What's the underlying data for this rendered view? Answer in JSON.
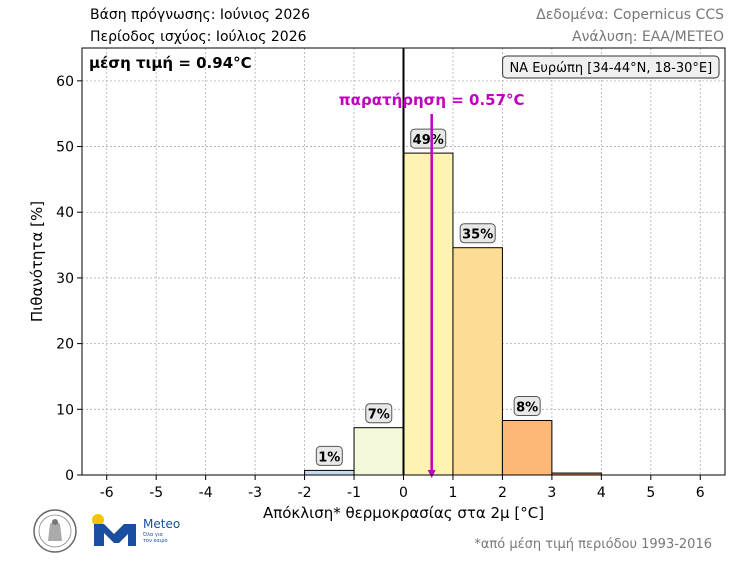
{
  "header": {
    "forecast_base": "Βάση πρόγνωσης: Ιούνιος 2026",
    "validity_period": "Περίοδος ισχύος: Ιούλιος 2026",
    "data_source": "Δεδομένα: Copernicus CCS",
    "analysis": "Ανάλυση: ΕΑΑ/METEO"
  },
  "footnote": "*από μέση τιμή περιόδου 1993-2016",
  "logos": {
    "meteo_name": "Meteo",
    "meteo_tagline": "Όλα για τον καιρό"
  },
  "colors": {
    "observation": "#c000c0",
    "bar_edge": "#000000",
    "grid": "#b0b0b0"
  },
  "chart_data": {
    "type": "bar",
    "xlabel": "Απόκλιση* θερμοκρασίας στα 2μ [°C]",
    "ylabel": "Πιθανότητα [%]",
    "xlim": [
      -6.5,
      6.5
    ],
    "ylim": [
      0,
      65
    ],
    "xticks": [
      -6,
      -5,
      -4,
      -3,
      -2,
      -1,
      0,
      1,
      2,
      3,
      4,
      5,
      6
    ],
    "yticks": [
      0,
      10,
      20,
      30,
      40,
      50,
      60
    ],
    "grid": true,
    "bins": [
      {
        "from": -6,
        "to": -5,
        "value": 0,
        "color": "#08306b",
        "label": ""
      },
      {
        "from": -5,
        "to": -4,
        "value": 0,
        "color": "#2171b5",
        "label": ""
      },
      {
        "from": -4,
        "to": -3,
        "value": 0,
        "color": "#4292c6",
        "label": ""
      },
      {
        "from": -3,
        "to": -2,
        "value": 0,
        "color": "#6baed6",
        "label": ""
      },
      {
        "from": -2,
        "to": -1,
        "value": 0.7,
        "color": "#c6dbef",
        "label": "1%"
      },
      {
        "from": -1,
        "to": 0,
        "value": 7.2,
        "color": "#f4f9dc",
        "label": "7%"
      },
      {
        "from": 0,
        "to": 1,
        "value": 49,
        "color": "#fef3b3",
        "label": "49%"
      },
      {
        "from": 1,
        "to": 2,
        "value": 34.6,
        "color": "#fddc95",
        "label": "35%"
      },
      {
        "from": 2,
        "to": 3,
        "value": 8.3,
        "color": "#fdb877",
        "label": "8%"
      },
      {
        "from": 3,
        "to": 4,
        "value": 0.3,
        "color": "#f4874f",
        "label": ""
      },
      {
        "from": 4,
        "to": 5,
        "value": 0,
        "color": "#e34a33",
        "label": ""
      },
      {
        "from": 5,
        "to": 6,
        "value": 0,
        "color": "#b30000",
        "label": ""
      }
    ],
    "mean_value_text": "μέση τιμή = 0.94°C",
    "observation": {
      "value": 0.57,
      "label": "παρατήρηση = 0.57°C"
    },
    "region_label": "ΝΑ Ευρώπη [34-44°N, 18-30°E]"
  }
}
